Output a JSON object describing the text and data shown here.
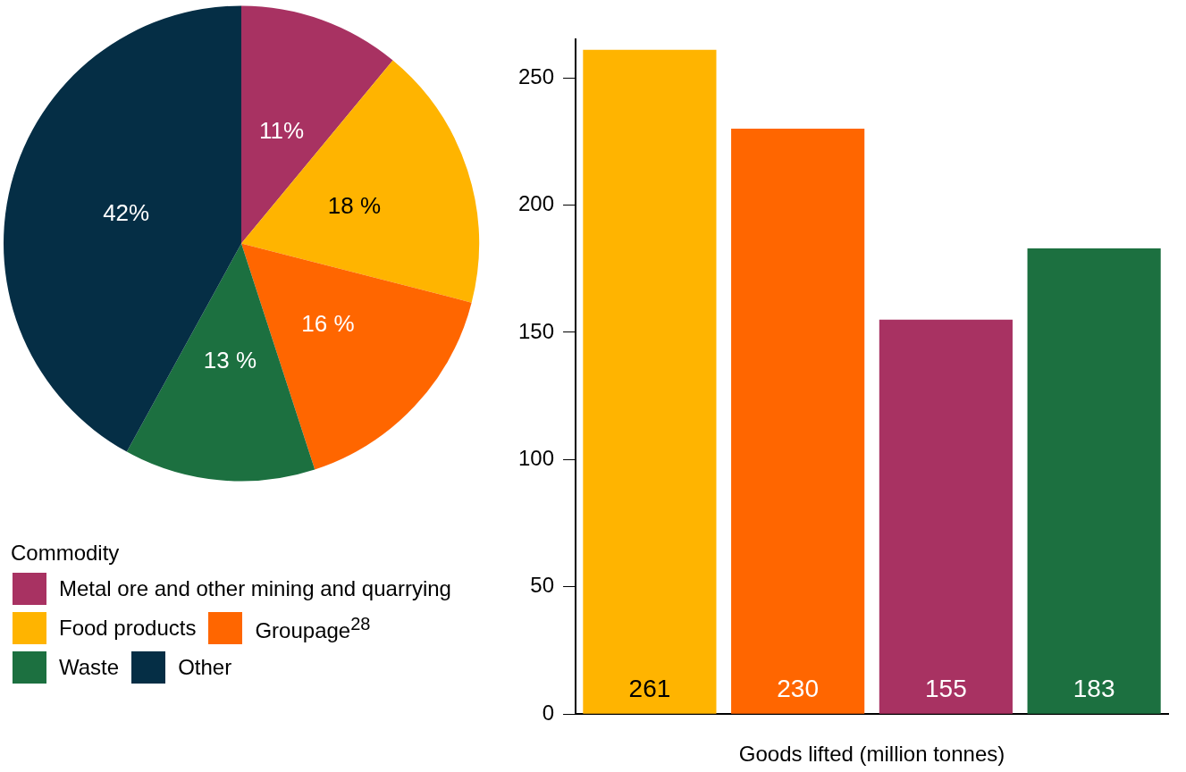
{
  "chart_data": [
    {
      "type": "pie",
      "legend_title": "Commodity",
      "legend": "bottom",
      "categories": [
        "Metal ore and other mining and quarrying",
        "Food products",
        "Groupage$^{28}$",
        "Waste",
        "Other"
      ],
      "values": [
        11,
        18,
        16,
        13,
        42
      ],
      "colors": [
        "#a83262",
        "#ffb400",
        "#ff6600",
        "#1c7040",
        "#052e45"
      ],
      "value_labels": [
        "11%",
        "18 %",
        "16 %",
        "13 %",
        "42%"
      ]
    },
    {
      "type": "bar",
      "categories": [
        null,
        null,
        null,
        null
      ],
      "values": [
        261,
        230,
        155,
        183
      ],
      "colors": [
        "#ffb400",
        "#ff6600",
        "#a83262",
        "#1c7040"
      ],
      "ylim": [
        0,
        265
      ],
      "yticks": [
        0,
        50,
        100,
        150,
        200,
        250
      ],
      "grid": false,
      "data_labels": true,
      "xlabel": "Goods lifted (million tonnes)"
    }
  ]
}
